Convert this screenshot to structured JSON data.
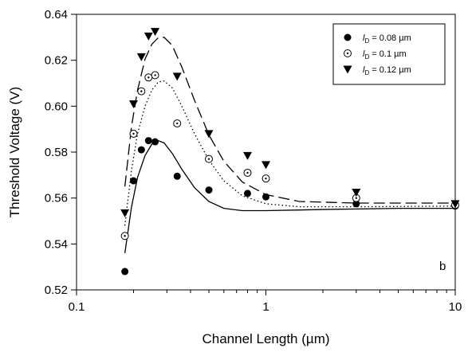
{
  "chart_data": {
    "type": "scatter",
    "title": "",
    "xlabel": "Channel Length (µm)",
    "ylabel": "Threshold Voltage (V)",
    "xscale": "log",
    "xlim": [
      0.1,
      10
    ],
    "ylim": [
      0.52,
      0.64
    ],
    "x_ticks": [
      {
        "value": 0.1,
        "label": "0.1"
      },
      {
        "value": 1,
        "label": "1"
      },
      {
        "value": 10,
        "label": "10"
      }
    ],
    "y_ticks": [
      {
        "value": 0.52,
        "label": "0.52"
      },
      {
        "value": 0.54,
        "label": "0.54"
      },
      {
        "value": 0.56,
        "label": "0.56"
      },
      {
        "value": 0.58,
        "label": "0.58"
      },
      {
        "value": 0.6,
        "label": "0.60"
      },
      {
        "value": 0.62,
        "label": "0.62"
      },
      {
        "value": 0.64,
        "label": "0.64"
      }
    ],
    "grid": false,
    "legend_position": "top-right",
    "annotation": "b",
    "series": [
      {
        "legend_prefix": "l",
        "legend_sub": "D",
        "legend_value": " = 0.08 µm",
        "marker": "filled-circle",
        "line_style": "solid",
        "points": [
          {
            "x": 0.18,
            "y": 0.528
          },
          {
            "x": 0.2,
            "y": 0.5675
          },
          {
            "x": 0.22,
            "y": 0.581
          },
          {
            "x": 0.24,
            "y": 0.585
          },
          {
            "x": 0.26,
            "y": 0.5845
          },
          {
            "x": 0.34,
            "y": 0.5695
          },
          {
            "x": 0.5,
            "y": 0.5635
          },
          {
            "x": 0.8,
            "y": 0.562
          },
          {
            "x": 1.0,
            "y": 0.5605
          },
          {
            "x": 3.0,
            "y": 0.5575
          },
          {
            "x": 10.0,
            "y": 0.5565
          }
        ],
        "fit": [
          {
            "x": 0.18,
            "y": 0.536
          },
          {
            "x": 0.195,
            "y": 0.556
          },
          {
            "x": 0.21,
            "y": 0.569
          },
          {
            "x": 0.23,
            "y": 0.5785
          },
          {
            "x": 0.25,
            "y": 0.5835
          },
          {
            "x": 0.27,
            "y": 0.585
          },
          {
            "x": 0.29,
            "y": 0.584
          },
          {
            "x": 0.32,
            "y": 0.5795
          },
          {
            "x": 0.36,
            "y": 0.5725
          },
          {
            "x": 0.42,
            "y": 0.5645
          },
          {
            "x": 0.5,
            "y": 0.5585
          },
          {
            "x": 0.6,
            "y": 0.5555
          },
          {
            "x": 0.75,
            "y": 0.5545
          },
          {
            "x": 1.0,
            "y": 0.5545
          },
          {
            "x": 2.0,
            "y": 0.555
          },
          {
            "x": 5.0,
            "y": 0.5555
          },
          {
            "x": 10.0,
            "y": 0.5555
          }
        ]
      },
      {
        "legend_prefix": "l",
        "legend_sub": "D",
        "legend_value": " = 0.1 µm",
        "marker": "dotted-circle",
        "line_style": "dotted",
        "points": [
          {
            "x": 0.18,
            "y": 0.5435
          },
          {
            "x": 0.2,
            "y": 0.588
          },
          {
            "x": 0.22,
            "y": 0.6065
          },
          {
            "x": 0.24,
            "y": 0.6125
          },
          {
            "x": 0.26,
            "y": 0.6135
          },
          {
            "x": 0.34,
            "y": 0.5925
          },
          {
            "x": 0.5,
            "y": 0.577
          },
          {
            "x": 0.8,
            "y": 0.571
          },
          {
            "x": 1.0,
            "y": 0.5685
          },
          {
            "x": 3.0,
            "y": 0.56
          },
          {
            "x": 10.0,
            "y": 0.557
          }
        ],
        "fit": [
          {
            "x": 0.18,
            "y": 0.548
          },
          {
            "x": 0.195,
            "y": 0.572
          },
          {
            "x": 0.21,
            "y": 0.588
          },
          {
            "x": 0.23,
            "y": 0.6
          },
          {
            "x": 0.25,
            "y": 0.607
          },
          {
            "x": 0.27,
            "y": 0.6105
          },
          {
            "x": 0.29,
            "y": 0.611
          },
          {
            "x": 0.32,
            "y": 0.608
          },
          {
            "x": 0.36,
            "y": 0.6
          },
          {
            "x": 0.42,
            "y": 0.588
          },
          {
            "x": 0.5,
            "y": 0.5765
          },
          {
            "x": 0.6,
            "y": 0.5675
          },
          {
            "x": 0.75,
            "y": 0.561
          },
          {
            "x": 1.0,
            "y": 0.5575
          },
          {
            "x": 1.5,
            "y": 0.5562
          },
          {
            "x": 3.0,
            "y": 0.5562
          },
          {
            "x": 10.0,
            "y": 0.5565
          }
        ]
      },
      {
        "legend_prefix": "l",
        "legend_sub": "D",
        "legend_value": " = 0.12 µm",
        "marker": "filled-triangle-down",
        "line_style": "dashed",
        "points": [
          {
            "x": 0.18,
            "y": 0.5535
          },
          {
            "x": 0.2,
            "y": 0.601
          },
          {
            "x": 0.22,
            "y": 0.6215
          },
          {
            "x": 0.24,
            "y": 0.6305
          },
          {
            "x": 0.26,
            "y": 0.6325
          },
          {
            "x": 0.34,
            "y": 0.613
          },
          {
            "x": 0.5,
            "y": 0.588
          },
          {
            "x": 0.8,
            "y": 0.5785
          },
          {
            "x": 1.0,
            "y": 0.5745
          },
          {
            "x": 3.0,
            "y": 0.5625
          },
          {
            "x": 10.0,
            "y": 0.5575
          }
        ],
        "fit": [
          {
            "x": 0.18,
            "y": 0.565
          },
          {
            "x": 0.195,
            "y": 0.591
          },
          {
            "x": 0.21,
            "y": 0.607
          },
          {
            "x": 0.23,
            "y": 0.6205
          },
          {
            "x": 0.25,
            "y": 0.627
          },
          {
            "x": 0.27,
            "y": 0.6298
          },
          {
            "x": 0.29,
            "y": 0.63
          },
          {
            "x": 0.32,
            "y": 0.6265
          },
          {
            "x": 0.36,
            "y": 0.617
          },
          {
            "x": 0.42,
            "y": 0.6025
          },
          {
            "x": 0.5,
            "y": 0.5875
          },
          {
            "x": 0.6,
            "y": 0.576
          },
          {
            "x": 0.75,
            "y": 0.567
          },
          {
            "x": 1.0,
            "y": 0.5615
          },
          {
            "x": 1.5,
            "y": 0.5585
          },
          {
            "x": 3.0,
            "y": 0.5578
          },
          {
            "x": 10.0,
            "y": 0.5578
          }
        ]
      }
    ]
  }
}
